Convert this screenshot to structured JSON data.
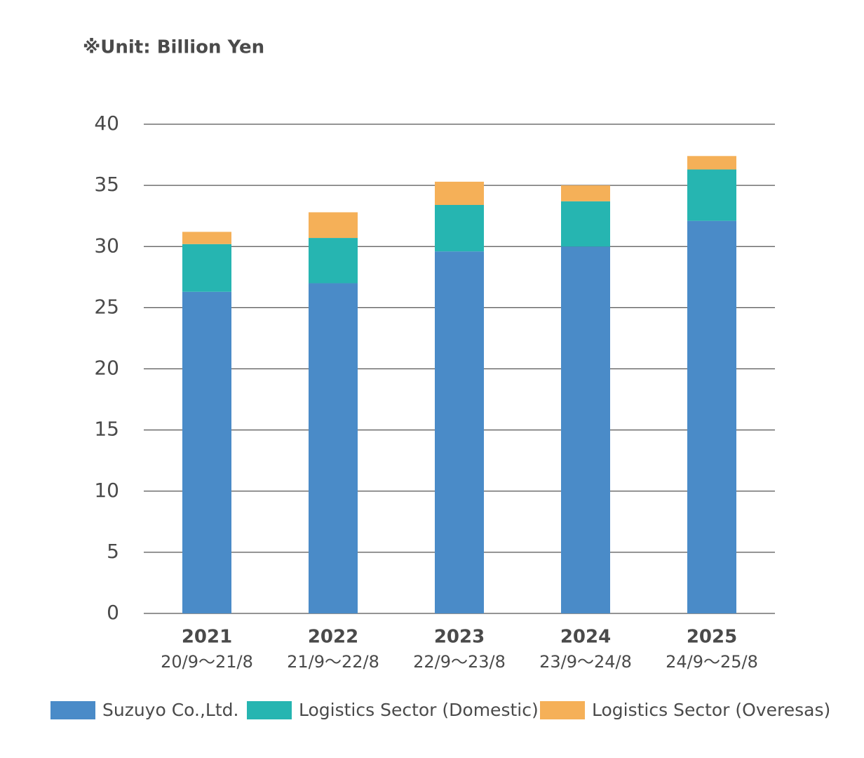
{
  "chart_data": {
    "type": "stacked_bar",
    "title": "※Unit: Billion Yen",
    "categories": [
      "2021",
      "2022",
      "2023",
      "2024",
      "2025"
    ],
    "category_sublabels": [
      "20/9～21/8",
      "21/9～22/8",
      "22/9～23/8",
      "23/9～24/8",
      "24/9～25/8"
    ],
    "series": [
      {
        "name": "Suzuyo Co.,Ltd.",
        "color": "#4a8bc8",
        "values": [
          26.3,
          27.0,
          29.6,
          30.0,
          32.1
        ]
      },
      {
        "name": "Logistics Sector (Domestic)",
        "color": "#26b5b1",
        "values": [
          3.9,
          3.7,
          3.8,
          3.7,
          4.2
        ]
      },
      {
        "name": "Logistics Sector (Overesas)",
        "color": "#f5b058",
        "values": [
          1.0,
          2.1,
          1.9,
          1.3,
          1.1
        ]
      }
    ],
    "ylim": [
      0,
      40
    ],
    "yticks": [
      0,
      5,
      10,
      15,
      20,
      25,
      30,
      35,
      40
    ],
    "grid": true,
    "legend": "bottom"
  }
}
